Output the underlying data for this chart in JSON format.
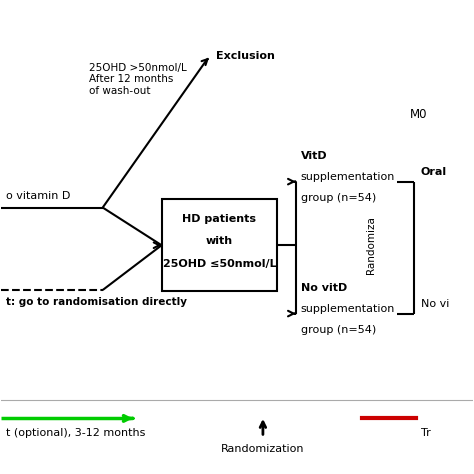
{
  "bg_color": "#ffffff",
  "box_text_line1": "HD patients",
  "box_text_line2": "with",
  "box_text_line3": "25OHD ≤50nmol/L",
  "exclusion_text": "25OHD >50nmol/L\nAfter 12 months\nof wash-out",
  "exclusion_label": "Exclusion",
  "vitd_line1": "VitD",
  "vitd_line2": "supplementation",
  "vitd_line3": "group (n=54)",
  "novitd_line1": "No vitD",
  "novitd_line2": "supplementation",
  "novitd_line3": "group (n=54)",
  "no_vitd_left_text": "o vitamin D",
  "direct_text": "t: go to randomisation directly",
  "m0_text": "M0",
  "oral_text": "Oral",
  "novi_text": "No vi",
  "randomiza_text": "Randomiza",
  "legend_green_text": "t (optional), 3-12 months",
  "legend_black_text": "Randomization",
  "legend_red_text": "Tr",
  "arrow_color": "#000000",
  "green_color": "#00cc00",
  "red_color": "#cc0000"
}
